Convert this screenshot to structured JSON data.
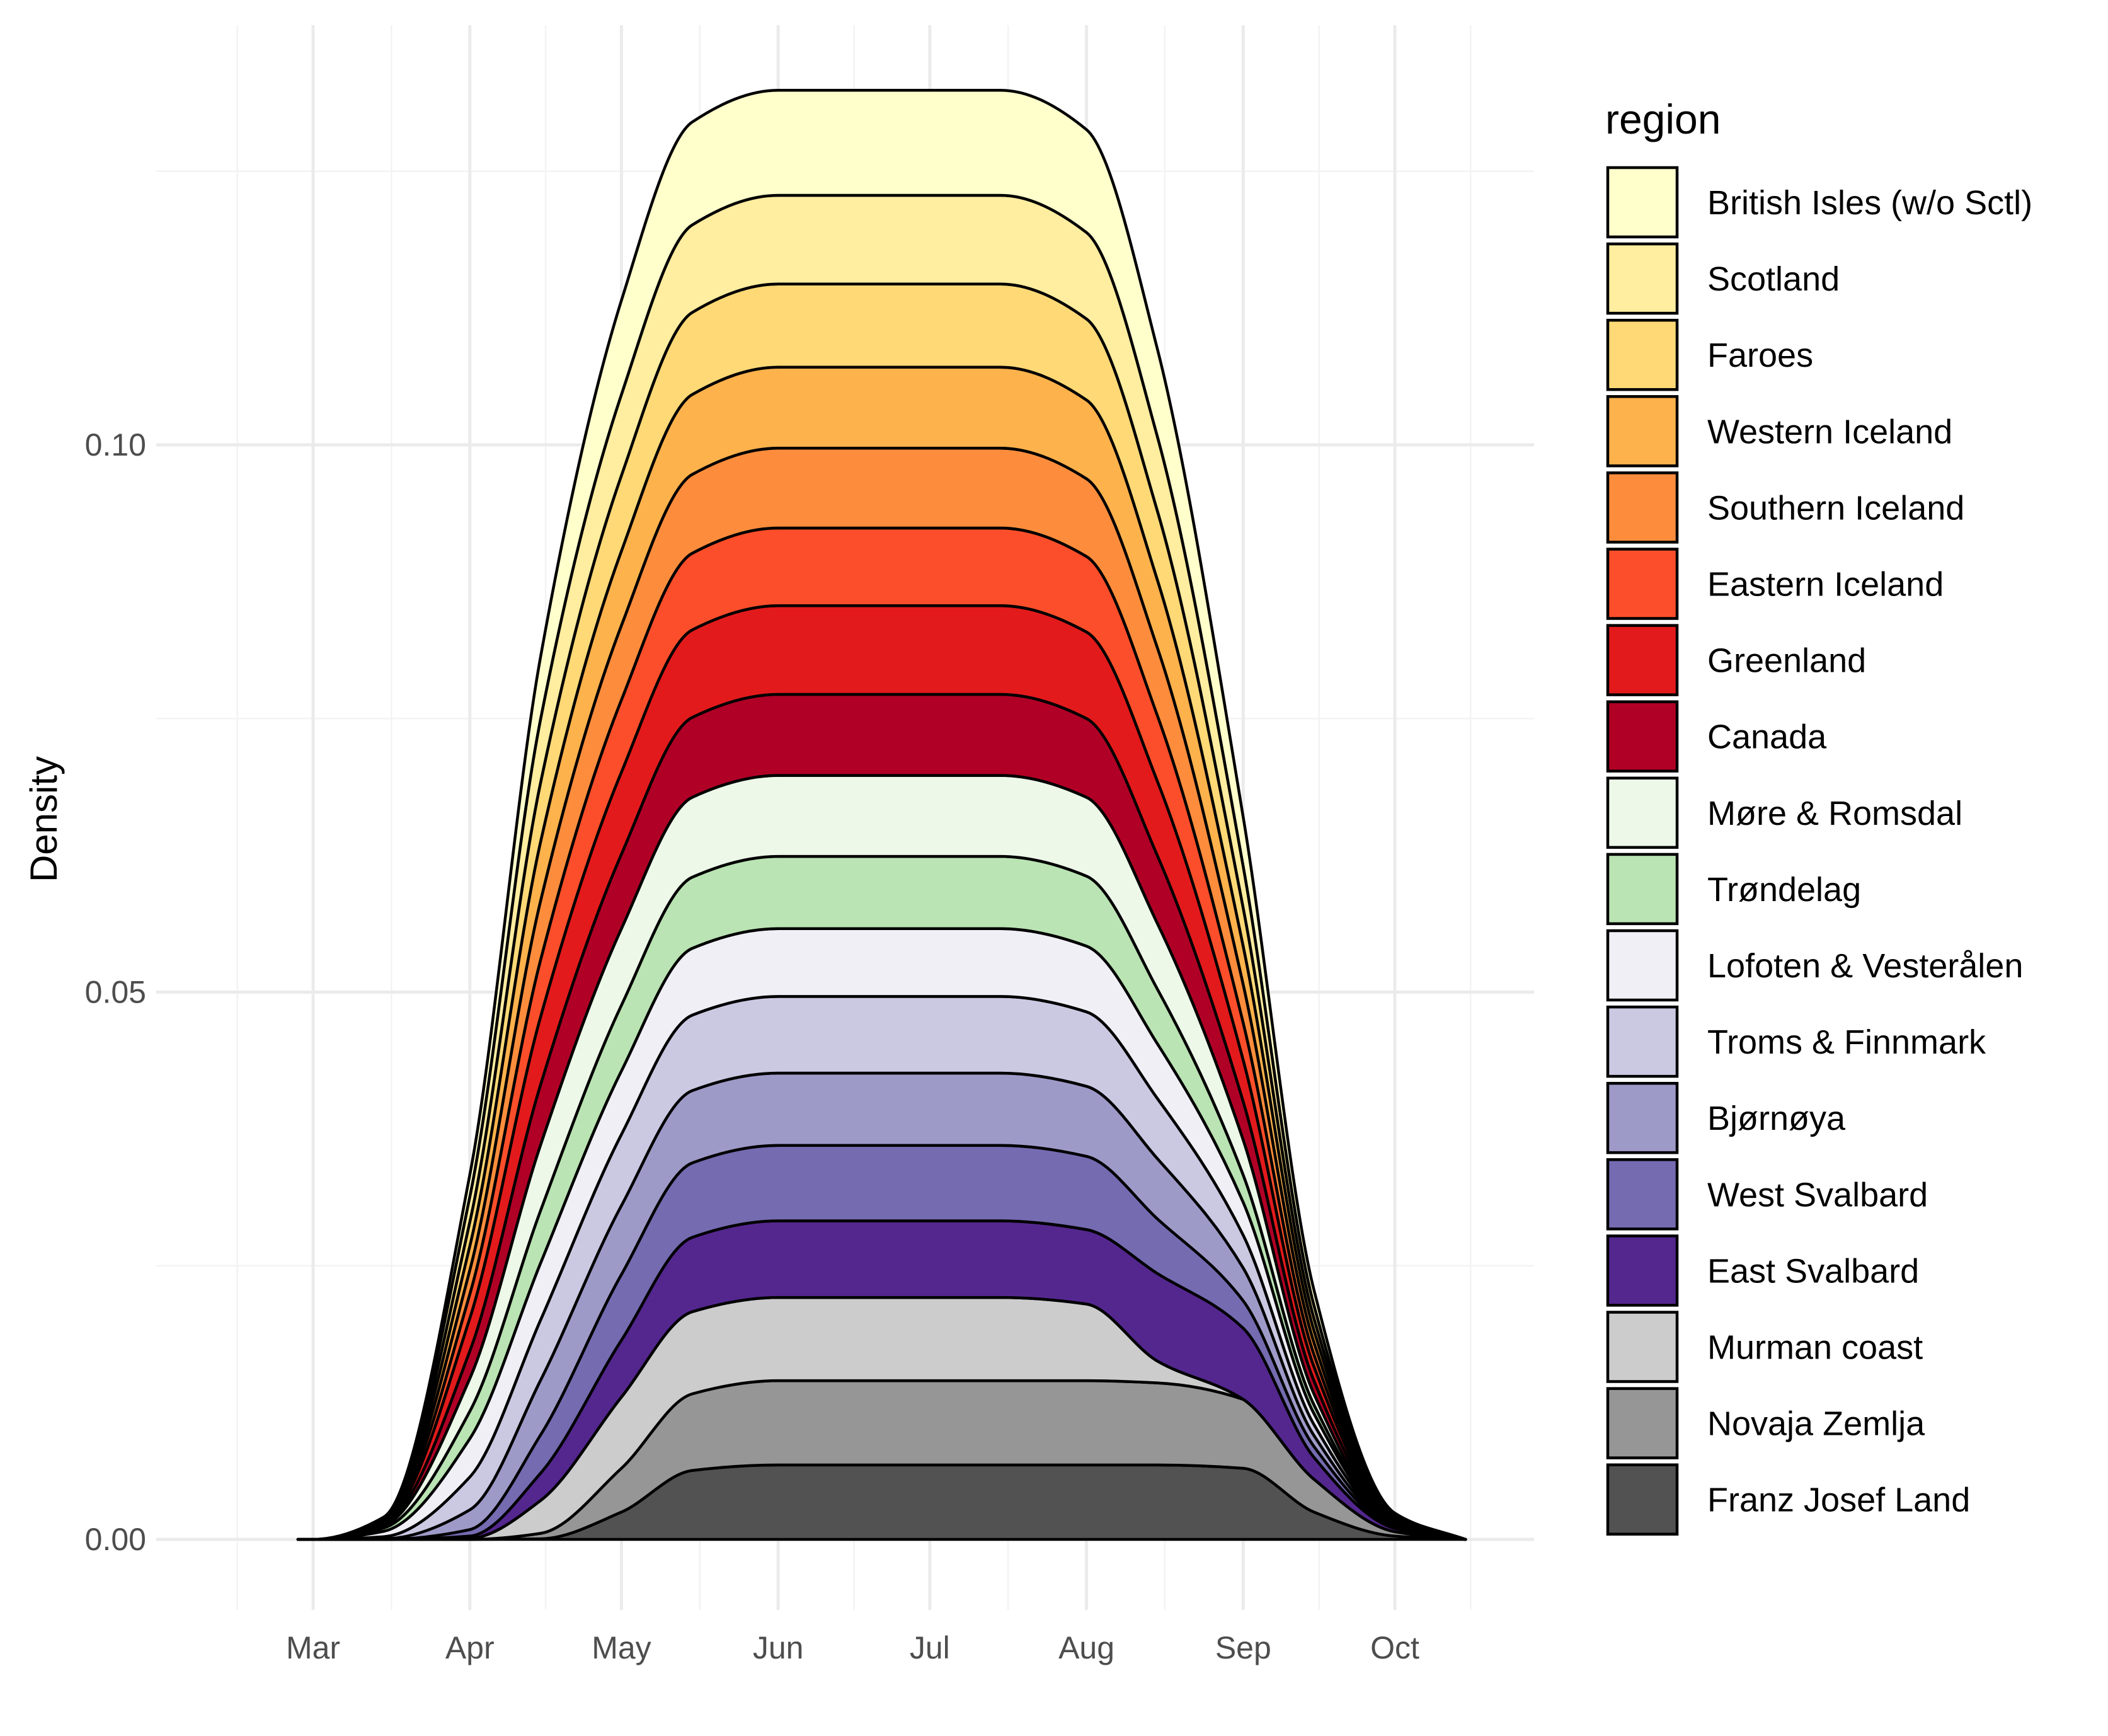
{
  "chart_data": {
    "type": "area",
    "stacked": true,
    "xlabel": "",
    "ylabel": "Density",
    "x_ticks": [
      "Mar",
      "Apr",
      "May",
      "Jun",
      "Jul",
      "Aug",
      "Sep",
      "Oct"
    ],
    "y_ticks": [
      "0.00",
      "0.05",
      "0.10"
    ],
    "ylim": [
      -0.0055,
      0.139
    ],
    "grid": true,
    "legend": {
      "title": "region",
      "position": "right"
    },
    "x": [
      "Feb 26",
      "Mar 1",
      "Mar 15",
      "Apr 1",
      "Apr 15",
      "May 1",
      "May 15",
      "Jun 1",
      "Jun 15",
      "Jul 1",
      "Jul 15",
      "Aug 1",
      "Aug 15",
      "Sep 1",
      "Sep 15",
      "Oct 1",
      "Oct 15"
    ],
    "series": [
      {
        "name": "Franz Josef Land",
        "color": "#525252",
        "values": [
          0,
          0,
          0,
          0,
          5e-05,
          0.0025,
          0.0063,
          0.0068,
          0.0068,
          0.0068,
          0.0068,
          0.0068,
          0.0068,
          0.0065,
          0.0025,
          0.0003,
          0
        ]
      },
      {
        "name": "Novaja Zemlja",
        "color": "#969696",
        "values": [
          0,
          0,
          0,
          0,
          0.0005,
          0.004,
          0.007,
          0.0077,
          0.0077,
          0.0077,
          0.0077,
          0.0077,
          0.0075,
          0.0063,
          0.003,
          0.0004,
          0
        ]
      },
      {
        "name": "Murman coast",
        "color": "#cccccc",
        "values": [
          0,
          0,
          0,
          0.0001,
          0.003,
          0.0065,
          0.0075,
          0.0076,
          0.0076,
          0.0076,
          0.0076,
          0.007,
          0.002,
          0,
          0,
          0,
          0
        ]
      },
      {
        "name": "East Svalbard",
        "color": "#54278f",
        "values": [
          0,
          0,
          0,
          0.0002,
          0.0025,
          0.0052,
          0.0068,
          0.007,
          0.007,
          0.007,
          0.007,
          0.0068,
          0.008,
          0.0065,
          0.002,
          0.0003,
          0
        ]
      },
      {
        "name": "West Svalbard",
        "color": "#756bb1",
        "values": [
          0,
          0,
          0,
          0.0006,
          0.0035,
          0.006,
          0.0068,
          0.0069,
          0.0069,
          0.0069,
          0.0069,
          0.0067,
          0.005,
          0.0025,
          0.001,
          0.0001,
          0
        ]
      },
      {
        "name": "Bjørnøya",
        "color": "#9e9ac8",
        "values": [
          0,
          0,
          5e-05,
          0.0018,
          0.005,
          0.0063,
          0.0066,
          0.0066,
          0.0066,
          0.0066,
          0.0066,
          0.0064,
          0.0055,
          0.003,
          0.001,
          0.0001,
          0
        ]
      },
      {
        "name": "Troms & Finnmark",
        "color": "#cbc9e2",
        "values": [
          0,
          0,
          0.0002,
          0.003,
          0.0055,
          0.0065,
          0.0069,
          0.007,
          0.007,
          0.007,
          0.007,
          0.0068,
          0.0055,
          0.003,
          0.001,
          0.0001,
          0
        ]
      },
      {
        "name": "Lofoten & Vesterålen",
        "color": "#f0eff6",
        "values": [
          0,
          0,
          0.0005,
          0.0035,
          0.0052,
          0.0058,
          0.0061,
          0.0062,
          0.0062,
          0.0062,
          0.0062,
          0.006,
          0.005,
          0.003,
          0.001,
          0.0001,
          0
        ]
      },
      {
        "name": "Trøndelag",
        "color": "#bae4b3",
        "values": [
          0,
          0,
          0.0003,
          0.0025,
          0.0048,
          0.006,
          0.0065,
          0.0066,
          0.0066,
          0.0066,
          0.0066,
          0.0064,
          0.005,
          0.0025,
          0.0008,
          0.0001,
          0
        ]
      },
      {
        "name": "Møre & Romsdal",
        "color": "#edf8e9",
        "values": [
          0,
          0,
          0.0002,
          0.003,
          0.006,
          0.007,
          0.0073,
          0.0074,
          0.0074,
          0.0074,
          0.0074,
          0.0072,
          0.006,
          0.0032,
          0.001,
          0.0001,
          0
        ]
      },
      {
        "name": "Canada",
        "color": "#b10026",
        "values": [
          0,
          0,
          0.0001,
          0.0025,
          0.0055,
          0.0068,
          0.0073,
          0.0074,
          0.0074,
          0.0074,
          0.0074,
          0.0072,
          0.0062,
          0.0035,
          0.0012,
          0.0001,
          0
        ]
      },
      {
        "name": "Greenland",
        "color": "#e31a1c",
        "values": [
          0,
          0,
          0.0001,
          0.003,
          0.0062,
          0.0075,
          0.008,
          0.0081,
          0.0081,
          0.0081,
          0.0081,
          0.0079,
          0.0068,
          0.0038,
          0.0013,
          0.0001,
          0
        ]
      },
      {
        "name": "Eastern Iceland",
        "color": "#fc4e2a",
        "values": [
          0,
          0,
          0.0001,
          0.0022,
          0.0052,
          0.0066,
          0.007,
          0.0071,
          0.0071,
          0.0071,
          0.0071,
          0.0069,
          0.006,
          0.0034,
          0.0011,
          0.0001,
          0
        ]
      },
      {
        "name": "Southern Iceland",
        "color": "#fd8d3c",
        "values": [
          0,
          0,
          0.0001,
          0.0022,
          0.0054,
          0.0068,
          0.0072,
          0.0073,
          0.0073,
          0.0073,
          0.0073,
          0.0071,
          0.0062,
          0.0035,
          0.0011,
          0.0001,
          0
        ]
      },
      {
        "name": "Western Iceland",
        "color": "#feb24c",
        "values": [
          0,
          0,
          0.0001,
          0.0022,
          0.0054,
          0.0068,
          0.0073,
          0.0074,
          0.0074,
          0.0074,
          0.0074,
          0.0072,
          0.0062,
          0.0035,
          0.0011,
          0.0001,
          0
        ]
      },
      {
        "name": "Faroes",
        "color": "#fed976",
        "values": [
          0,
          0,
          0.0001,
          0.0022,
          0.0054,
          0.0069,
          0.0075,
          0.0076,
          0.0076,
          0.0076,
          0.0076,
          0.0074,
          0.0063,
          0.0035,
          0.0011,
          0.0001,
          0
        ]
      },
      {
        "name": "Scotland",
        "color": "#ffeda0",
        "values": [
          0,
          0,
          0.0001,
          0.0023,
          0.0058,
          0.0074,
          0.008,
          0.0081,
          0.0081,
          0.0081,
          0.0081,
          0.0079,
          0.0068,
          0.0038,
          0.0012,
          0.0001,
          0
        ]
      },
      {
        "name": "British Isles (w/o Sctl)",
        "color": "#ffffcc",
        "values": [
          0,
          0,
          0.0001,
          0.002,
          0.0057,
          0.0086,
          0.0094,
          0.0096,
          0.0096,
          0.0096,
          0.0096,
          0.0094,
          0.008,
          0.0045,
          0.0014,
          0.0001,
          0
        ]
      }
    ]
  }
}
